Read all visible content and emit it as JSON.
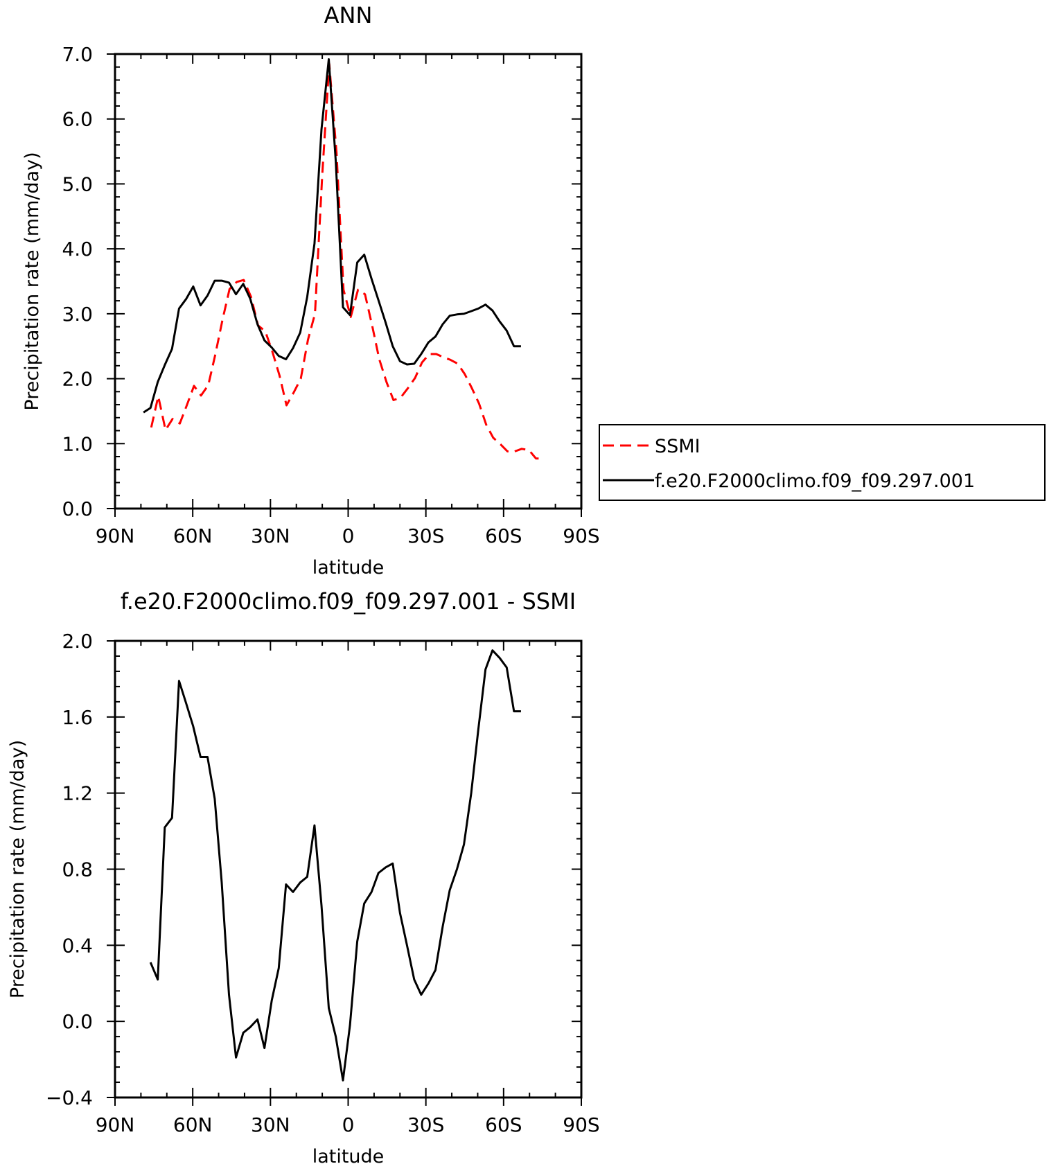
{
  "chart_data": [
    {
      "type": "line",
      "title": "ANN",
      "xlabel": "latitude",
      "ylabel": "Precipitation rate (mm/day)",
      "xlim": [
        90,
        -90
      ],
      "ylim": [
        0.0,
        7.0
      ],
      "x_ticks": [
        90,
        60,
        30,
        0,
        -30,
        -60,
        -90
      ],
      "x_tick_labels": [
        "90N",
        "60N",
        "30N",
        "0",
        "30S",
        "60S",
        "90S"
      ],
      "y_ticks": [
        0,
        1,
        2,
        3,
        4,
        5,
        6,
        7
      ],
      "y_tick_labels": [
        "0.0",
        "1.0",
        "2.0",
        "3.0",
        "4.0",
        "5.0",
        "6.0",
        "7.0"
      ],
      "grid": false,
      "legend_position": "right",
      "series": [
        {
          "name": "SSMI",
          "color": "#ff0000",
          "dash": "dashed",
          "x": [
            76.0,
            73.3,
            70.5,
            67.8,
            65.0,
            62.3,
            59.5,
            56.8,
            54.0,
            51.3,
            48.5,
            45.8,
            43.0,
            40.3,
            37.5,
            34.8,
            32.0,
            29.3,
            26.5,
            23.8,
            21.0,
            18.3,
            15.5,
            12.8,
            10.0,
            7.3,
            4.5,
            1.8,
            -1.0,
            -3.8,
            -6.5,
            -9.3,
            -12.0,
            -14.8,
            -17.5,
            -20.3,
            -23.0,
            -25.8,
            -28.5,
            -31.3,
            -34.0,
            -36.8,
            -39.5,
            -42.3,
            -45.0,
            -47.8,
            -50.5,
            -53.3,
            -56.0,
            -58.8,
            -61.5,
            -64.3,
            -67.0,
            -69.8,
            -72.5,
            -75.3
          ],
          "y": [
            1.25,
            1.73,
            1.21,
            1.38,
            1.31,
            1.59,
            1.89,
            1.74,
            1.9,
            2.37,
            2.91,
            3.38,
            3.49,
            3.52,
            3.26,
            2.82,
            2.73,
            2.42,
            2.05,
            1.59,
            1.79,
            2.0,
            2.6,
            3.0,
            5.14,
            6.85,
            5.48,
            3.37,
            2.95,
            3.37,
            3.3,
            2.81,
            2.3,
            1.95,
            1.67,
            1.71,
            1.85,
            2.01,
            2.25,
            2.38,
            2.38,
            2.33,
            2.29,
            2.23,
            2.07,
            1.85,
            1.62,
            1.29,
            1.09,
            0.99,
            0.88,
            0.88,
            0.92,
            0.9,
            0.77,
            0.77
          ]
        },
        {
          "name": "f.e20.F2000climo.f09_f09.297.001",
          "color": "#000000",
          "dash": "solid",
          "x": [
            79.0,
            76.3,
            73.5,
            70.8,
            68.0,
            65.3,
            62.5,
            59.8,
            57.0,
            54.3,
            51.5,
            48.8,
            46.0,
            43.3,
            40.5,
            37.8,
            35.0,
            32.3,
            29.5,
            26.8,
            24.0,
            21.3,
            18.5,
            15.8,
            13.0,
            10.3,
            7.5,
            4.8,
            2.0,
            -0.7,
            -3.5,
            -6.2,
            -9.0,
            -11.7,
            -14.5,
            -17.2,
            -20.0,
            -22.7,
            -25.5,
            -28.2,
            -31.0,
            -33.7,
            -36.5,
            -39.2,
            -42.0,
            -44.7,
            -47.5,
            -50.2,
            -53.0,
            -55.7,
            -58.5,
            -61.2,
            -64.0,
            -66.7
          ],
          "y": [
            1.48,
            1.55,
            1.95,
            2.21,
            2.46,
            3.08,
            3.23,
            3.42,
            3.13,
            3.28,
            3.51,
            3.51,
            3.48,
            3.3,
            3.46,
            3.23,
            2.84,
            2.59,
            2.48,
            2.35,
            2.3,
            2.47,
            2.71,
            3.26,
            4.08,
            5.84,
            6.92,
            5.35,
            3.1,
            2.98,
            3.79,
            3.91,
            3.54,
            3.21,
            2.86,
            2.5,
            2.27,
            2.22,
            2.23,
            2.38,
            2.56,
            2.65,
            2.84,
            2.97,
            2.99,
            3.0,
            3.04,
            3.08,
            3.14,
            3.05,
            2.88,
            2.74,
            2.5,
            2.5
          ]
        }
      ]
    },
    {
      "type": "line",
      "title": "f.e20.F2000climo.f09_f09.297.001 - SSMI",
      "xlabel": "latitude",
      "ylabel": "Precipitation rate (mm/day)",
      "xlim": [
        90,
        -90
      ],
      "ylim": [
        -0.4,
        2.0
      ],
      "x_ticks": [
        90,
        60,
        30,
        0,
        -30,
        -60,
        -90
      ],
      "x_tick_labels": [
        "90N",
        "60N",
        "30N",
        "0",
        "30S",
        "60S",
        "90S"
      ],
      "y_ticks": [
        -0.4,
        0.0,
        0.4,
        0.8,
        1.2,
        1.6,
        2.0
      ],
      "y_tick_labels": [
        "−0.4",
        "0.0",
        "0.4",
        "0.8",
        "1.2",
        "1.6",
        "2.0"
      ],
      "grid": false,
      "series": [
        {
          "color": "#000000",
          "dash": "solid",
          "x": [
            76.3,
            73.5,
            70.8,
            68.0,
            65.3,
            62.5,
            59.8,
            57.0,
            54.3,
            51.5,
            48.8,
            46.0,
            43.3,
            40.5,
            37.8,
            35.0,
            32.3,
            29.5,
            26.8,
            24.0,
            21.3,
            18.5,
            15.8,
            13.0,
            10.3,
            7.5,
            4.8,
            2.0,
            -0.7,
            -3.5,
            -6.2,
            -9.0,
            -11.7,
            -14.5,
            -17.2,
            -20.0,
            -22.7,
            -25.5,
            -28.2,
            -31.0,
            -33.7,
            -36.5,
            -39.2,
            -42.0,
            -44.7,
            -47.5,
            -50.2,
            -53.0,
            -55.7,
            -58.5,
            -61.2,
            -64.0,
            -66.7
          ],
          "y": [
            0.31,
            0.22,
            1.02,
            1.07,
            1.79,
            1.67,
            1.55,
            1.39,
            1.39,
            1.17,
            0.73,
            0.14,
            -0.19,
            -0.06,
            -0.03,
            0.01,
            -0.14,
            0.11,
            0.28,
            0.72,
            0.68,
            0.73,
            0.76,
            1.03,
            0.61,
            0.07,
            -0.08,
            -0.31,
            -0.02,
            0.42,
            0.62,
            0.68,
            0.78,
            0.81,
            0.83,
            0.57,
            0.4,
            0.22,
            0.14,
            0.2,
            0.27,
            0.5,
            0.69,
            0.8,
            0.93,
            1.2,
            1.53,
            1.85,
            1.95,
            1.91,
            1.86,
            1.63,
            1.63
          ]
        }
      ]
    }
  ]
}
